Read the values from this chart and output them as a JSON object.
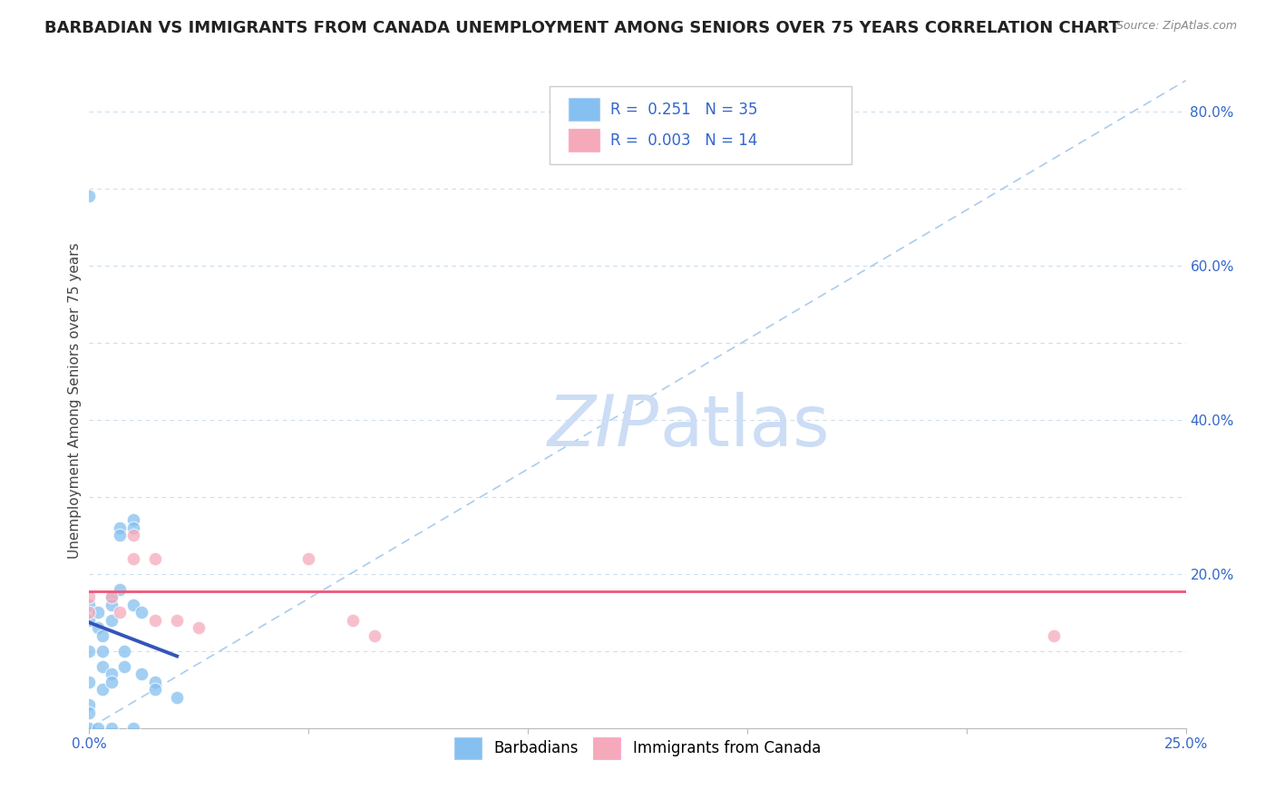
{
  "title": "BARBADIAN VS IMMIGRANTS FROM CANADA UNEMPLOYMENT AMONG SENIORS OVER 75 YEARS CORRELATION CHART",
  "source": "Source: ZipAtlas.com",
  "ylabel": "Unemployment Among Seniors over 75 years",
  "xlim": [
    0.0,
    0.25
  ],
  "ylim": [
    0.0,
    0.85
  ],
  "xticks": [
    0.0,
    0.05,
    0.1,
    0.15,
    0.2,
    0.25
  ],
  "xtick_labels": [
    "0.0%",
    "",
    "",
    "",
    "",
    "25.0%"
  ],
  "ytick_positions": [
    0.0,
    0.2,
    0.4,
    0.6,
    0.8
  ],
  "ytick_labels_right": [
    "",
    "20.0%",
    "40.0%",
    "60.0%",
    "80.0%"
  ],
  "barbadian_x": [
    0.0,
    0.0,
    0.0,
    0.0,
    0.0,
    0.0,
    0.002,
    0.002,
    0.003,
    0.003,
    0.003,
    0.003,
    0.005,
    0.005,
    0.005,
    0.005,
    0.005,
    0.007,
    0.007,
    0.007,
    0.008,
    0.008,
    0.01,
    0.01,
    0.01,
    0.012,
    0.012,
    0.015,
    0.015,
    0.02,
    0.0,
    0.0,
    0.002,
    0.005,
    0.01
  ],
  "barbadian_y": [
    0.69,
    0.16,
    0.14,
    0.1,
    0.06,
    0.03,
    0.15,
    0.13,
    0.12,
    0.1,
    0.08,
    0.05,
    0.17,
    0.16,
    0.14,
    0.07,
    0.06,
    0.26,
    0.25,
    0.18,
    0.1,
    0.08,
    0.27,
    0.26,
    0.16,
    0.15,
    0.07,
    0.06,
    0.05,
    0.04,
    0.0,
    0.02,
    0.0,
    0.0,
    0.0
  ],
  "canada_x": [
    0.0,
    0.0,
    0.005,
    0.007,
    0.01,
    0.01,
    0.015,
    0.015,
    0.02,
    0.025,
    0.05,
    0.06,
    0.065,
    0.22
  ],
  "canada_y": [
    0.17,
    0.15,
    0.17,
    0.15,
    0.25,
    0.22,
    0.22,
    0.14,
    0.14,
    0.13,
    0.22,
    0.14,
    0.12,
    0.12
  ],
  "barbadian_color": "#85C0F0",
  "canada_color": "#F5AABB",
  "barbadian_line_color": "#3355BB",
  "canada_line_color": "#EE5577",
  "ref_line_color": "#AACCEE",
  "watermark_color": "#CCDDF5",
  "title_fontsize": 13,
  "tick_fontsize": 11,
  "ylabel_fontsize": 11
}
